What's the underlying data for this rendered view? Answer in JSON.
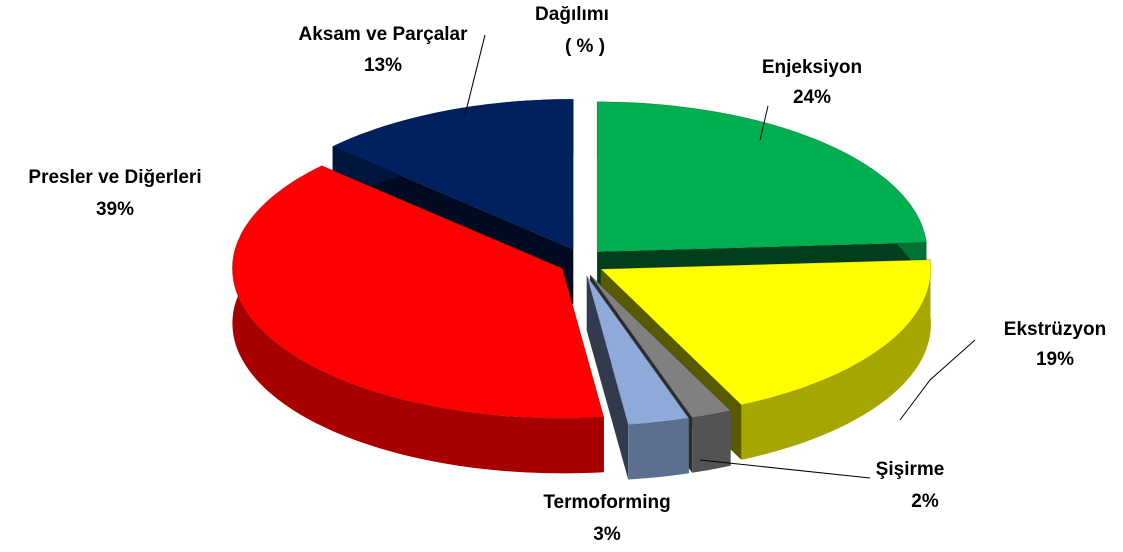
{
  "chart_data": {
    "type": "pie3d",
    "title": "Dağılımı",
    "subtitle": "( % )",
    "categories": [
      "Enjeksiyon",
      "Ekstrüzyon",
      "Şişirme",
      "Termoforming",
      "Presler ve Diğerleri",
      "Aksam ve Parçalar"
    ],
    "values": [
      24,
      19,
      2,
      3,
      39,
      13
    ],
    "value_labels": [
      "24%",
      "19%",
      "2%",
      "3%",
      "39%",
      "13%"
    ],
    "colors": [
      "#00b050",
      "#ffff00",
      "#808080",
      "#8eaadb",
      "#ff0000",
      "#002060"
    ]
  }
}
